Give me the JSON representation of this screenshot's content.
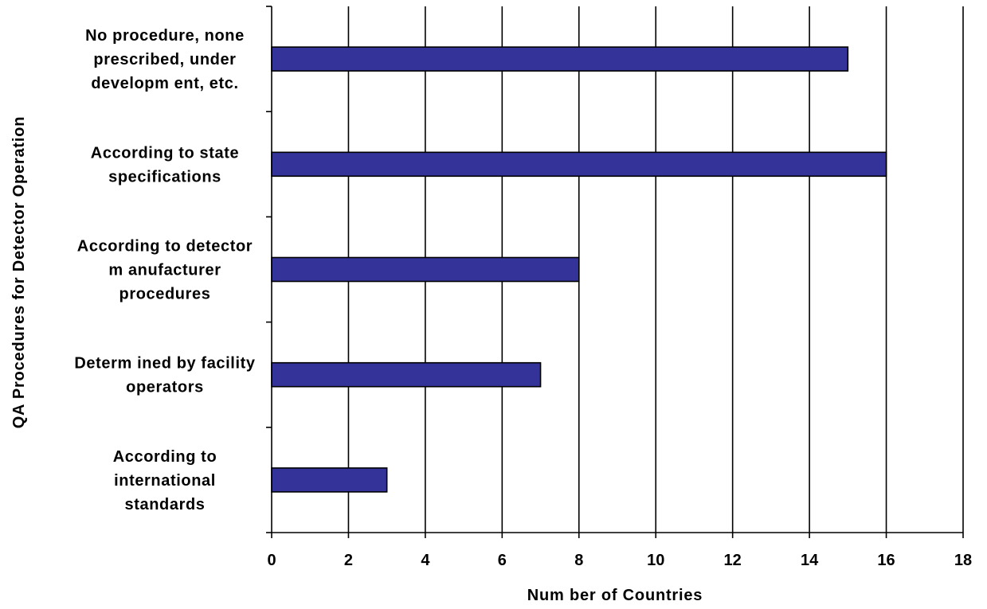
{
  "chart_data": {
    "type": "bar",
    "orientation": "horizontal",
    "categories": [
      "No procedure, none prescribed, under development, etc.",
      "According to state specifications",
      "According to detector manufacturer procedures",
      "Determined by facility operators",
      "According to international standards"
    ],
    "category_label_lines": [
      [
        "No procedure, none",
        "prescribed, under",
        "developm ent, etc."
      ],
      [
        "According to state",
        "specifications"
      ],
      [
        "According to detector",
        "m anufacturer",
        "procedures"
      ],
      [
        "Determ ined by facility",
        "operators"
      ],
      [
        "According to",
        "international",
        "standards"
      ]
    ],
    "values": [
      15,
      16,
      8,
      7,
      3
    ],
    "xlabel": "Num ber of Countries",
    "ylabel": "QA Procedures for Detector Operation",
    "xlim": [
      0,
      18
    ],
    "xticks": [
      0,
      2,
      4,
      6,
      8,
      10,
      12,
      14,
      16,
      18
    ],
    "grid": "vertical",
    "legend": "none",
    "bar_color": "#333399",
    "bar_edge_color": "#000000"
  }
}
